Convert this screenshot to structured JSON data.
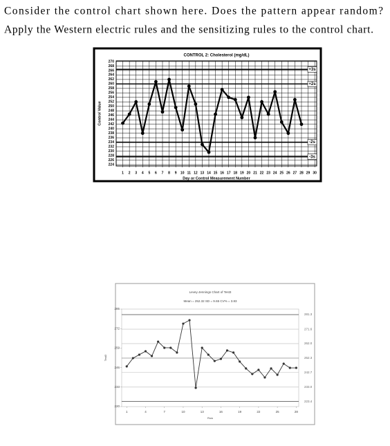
{
  "question": [
    "Consider the control chart shown here. Does the pattern appear random?",
    "Apply the Western electric rules and the sensitizing rules to the control chart."
  ],
  "chart_data": [
    {
      "type": "line",
      "title": "CONTROL 2: Cholesterol (mg/dL)",
      "y_label": "Control Value",
      "x_label": "Day or Control Measurement Number",
      "x": [
        1,
        2,
        3,
        4,
        5,
        6,
        7,
        8,
        9,
        10,
        11,
        12,
        13,
        14,
        15,
        16,
        17,
        18,
        19,
        20,
        21,
        22,
        23,
        24,
        25,
        26,
        27,
        28
      ],
      "series": [
        {
          "name": null,
          "color": "#000000",
          "values": [
            242.5,
            246.5,
            252,
            238,
            251,
            261,
            247.5,
            262,
            249.5,
            239.5,
            259,
            251,
            233,
            229.5,
            246.5,
            257.5,
            254,
            253,
            245,
            254,
            236,
            252,
            246.5,
            256.5,
            243,
            238,
            253,
            242
          ]
        }
      ],
      "xlim": [
        0,
        30.3
      ],
      "xticks": [
        1,
        2,
        3,
        4,
        5,
        6,
        7,
        8,
        9,
        10,
        11,
        12,
        13,
        14,
        15,
        16,
        17,
        18,
        19,
        20,
        21,
        22,
        23,
        24,
        25,
        26,
        27,
        28,
        29,
        30
      ],
      "ylim": [
        223.4,
        270.3
      ],
      "yticks": [
        224,
        226,
        228,
        230,
        232,
        234,
        236,
        238,
        240,
        242,
        244,
        246,
        248,
        250,
        252,
        254,
        256,
        258,
        260,
        262,
        264,
        266,
        268,
        270
      ],
      "limit_lines": [
        {
          "value": 266.5,
          "label": "+3s"
        },
        {
          "value": 260,
          "label": "+2s"
        },
        {
          "value": 234,
          "label": "-2s"
        },
        {
          "value": 227.5,
          "label": "-3s"
        }
      ],
      "grid": true
    },
    {
      "type": "line",
      "title": "Levey-Jennings Chart of Test3",
      "subtitle": "Mean = 252.32  SD = 9.65  CV% = 3.83",
      "y_label": "Test3",
      "x_label": "Row",
      "x": [
        1,
        2,
        3,
        4,
        5,
        6,
        7,
        8,
        9,
        10,
        11,
        12,
        13,
        14,
        15,
        16,
        17,
        18,
        19,
        20,
        21,
        22,
        23,
        24,
        25,
        26,
        27,
        28
      ],
      "series": [
        {
          "name": null,
          "color": "#333333",
          "values": [
            246.8,
            252.3,
            254.6,
            256.9,
            253.7,
            263.3,
            259.2,
            259.2,
            256,
            275.3,
            277.6,
            232.5,
            259.2,
            254.6,
            250.4,
            251.8,
            257.4,
            256,
            250,
            245.4,
            241.7,
            244.5,
            239.4,
            245.4,
            241.2,
            248.6,
            245.8,
            245.8
          ]
        }
      ],
      "xlim": [
        0.2,
        28.4
      ],
      "xticks": [
        1,
        4,
        7,
        10,
        13,
        16,
        19,
        22,
        25,
        28
      ],
      "ylim": [
        220,
        285
      ],
      "yticks": [
        220,
        233,
        246,
        259,
        272,
        285
      ],
      "y2lim": [
        220,
        285
      ],
      "y2ticks": [
        281.3,
        271.6,
        {
          "value": 262,
          "label": "262.0"
        },
        252.3,
        242.7,
        {
          "value": 233,
          "label": "233.0"
        },
        223.4
      ],
      "grid": false
    }
  ]
}
